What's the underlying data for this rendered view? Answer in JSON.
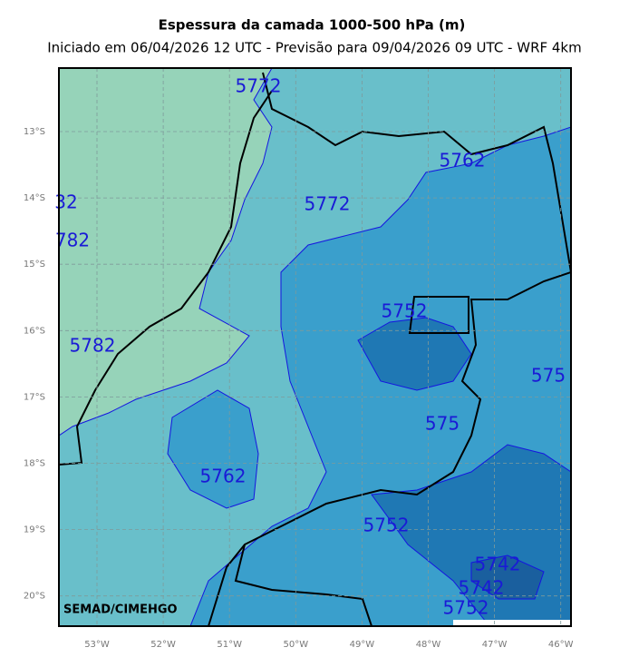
{
  "header": {
    "title": "Espessura da camada 1000-500 hPa (m)",
    "subtitle": "Iniciado em 06/04/2026 12 UTC - Previsão para 09/04/2026 09 UTC - WRF 4km"
  },
  "axes": {
    "lat_labels": [
      "13°S",
      "14°S",
      "15°S",
      "16°S",
      "17°S",
      "18°S",
      "19°S",
      "20°S"
    ],
    "lon_labels": [
      "53°W",
      "52°W",
      "51°W",
      "50°W",
      "49°W",
      "48°W",
      "47°W",
      "46°W"
    ]
  },
  "contour_labels": [
    "5772",
    "5762",
    "5772",
    "32",
    "782",
    "5752",
    "5782",
    "575",
    "575",
    "5762",
    "5752",
    "5742",
    "5742",
    "5752"
  ],
  "credit": "SEMAD/CIMEHGO"
}
